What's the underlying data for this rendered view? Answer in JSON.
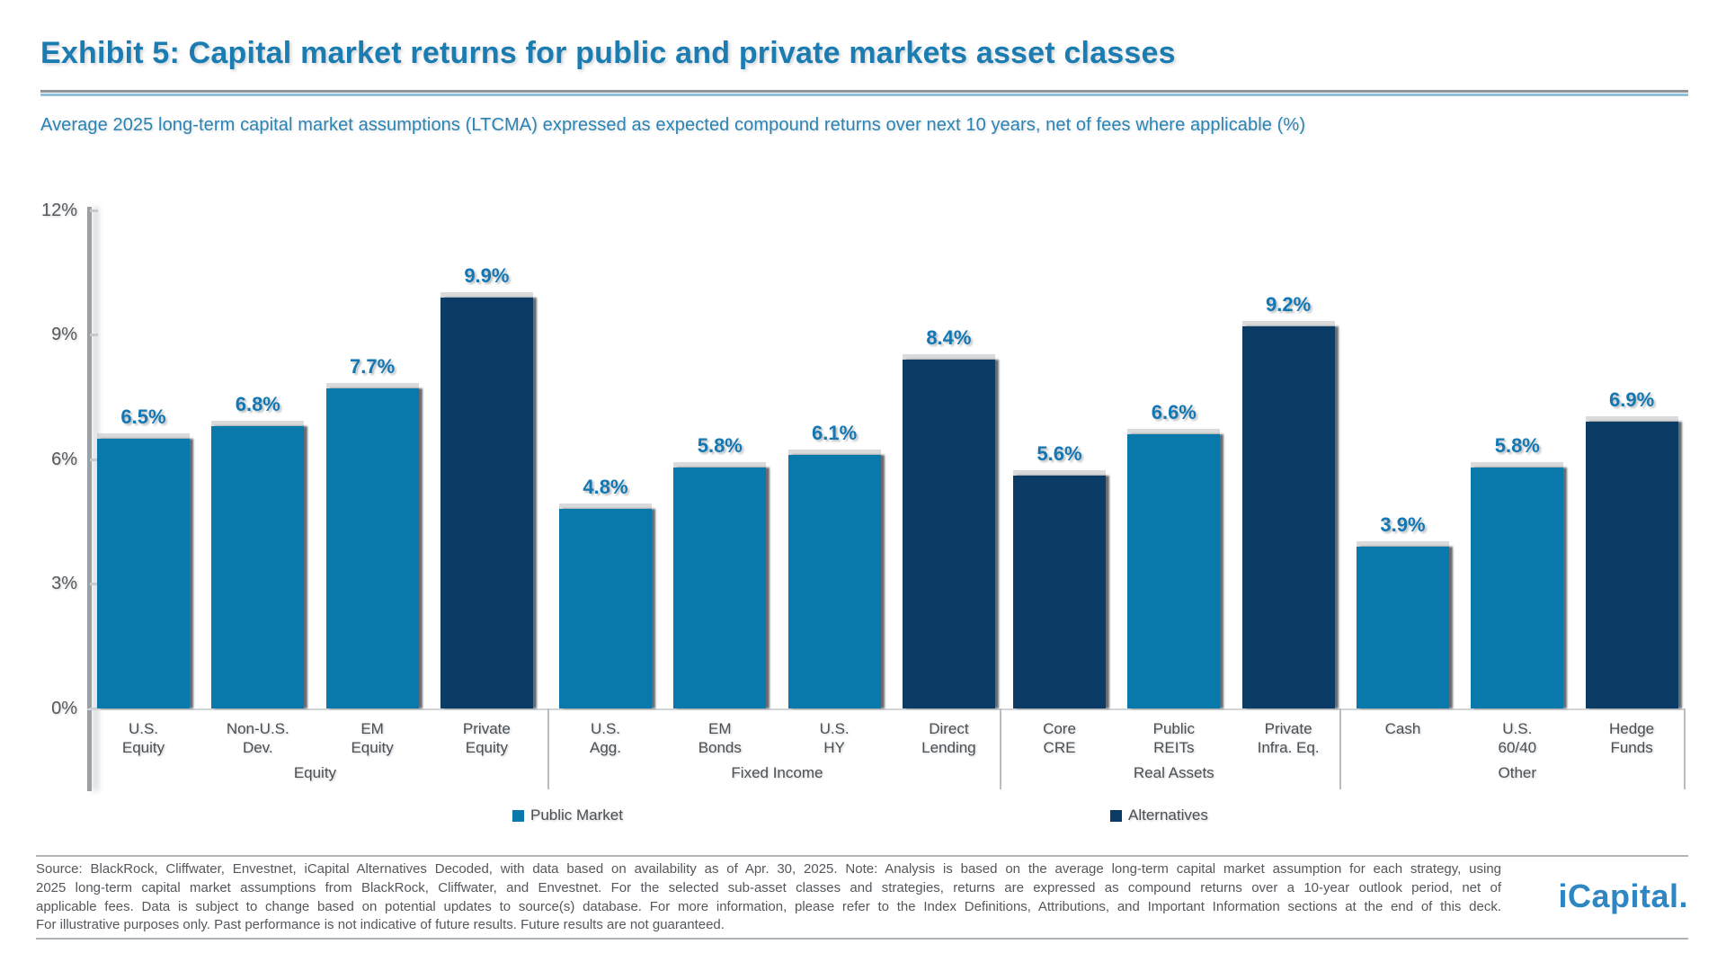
{
  "header": {
    "title": "Exhibit 5: Capital market returns for public and private markets asset classes",
    "subtitle": "Average 2025 long-term capital market assumptions (LTCMA) expressed as expected compound returns over next 10 years, net of fees where applicable (%)"
  },
  "chart_data": {
    "type": "bar",
    "title": "Exhibit 5: Capital market returns for public and private markets asset classes",
    "subtitle": "Average 2025 long-term capital market assumptions (LTCMA) expressed as expected compound returns over next 10 years, net of fees where applicable (%)",
    "ylim": [
      0,
      12
    ],
    "yticks": [
      "0%",
      "3%",
      "6%",
      "9%",
      "12%"
    ],
    "ytick_values": [
      0,
      3,
      6,
      9,
      12
    ],
    "grid": false,
    "legend_position": "bottom",
    "series": [
      {
        "name": "Public Market",
        "color": "#0879aa"
      },
      {
        "name": "Alternatives",
        "color": "#0a3c66"
      }
    ],
    "groups": [
      {
        "label": "Equity",
        "bars": [
          {
            "category": "U.S. Equity",
            "label_lines": [
              "U.S.",
              "Equity"
            ],
            "value": 6.5,
            "series": "Public Market"
          },
          {
            "category": "Non-U.S. Dev.",
            "label_lines": [
              "Non-U.S.",
              "Dev."
            ],
            "value": 6.8,
            "series": "Public Market"
          },
          {
            "category": "EM Equity",
            "label_lines": [
              "EM",
              "Equity"
            ],
            "value": 7.7,
            "series": "Public Market"
          },
          {
            "category": "Private Equity",
            "label_lines": [
              "Private",
              "Equity"
            ],
            "value": 9.9,
            "series": "Alternatives"
          }
        ]
      },
      {
        "label": "Fixed Income",
        "bars": [
          {
            "category": "U.S. Agg.",
            "label_lines": [
              "U.S.",
              "Agg."
            ],
            "value": 4.8,
            "series": "Public Market"
          },
          {
            "category": "EM Bonds",
            "label_lines": [
              "EM",
              "Bonds"
            ],
            "value": 5.8,
            "series": "Public Market"
          },
          {
            "category": "U.S. HY",
            "label_lines": [
              "U.S.",
              "HY"
            ],
            "value": 6.1,
            "series": "Public Market"
          },
          {
            "category": "Direct Lending",
            "label_lines": [
              "Direct",
              "Lending"
            ],
            "value": 8.4,
            "series": "Alternatives"
          }
        ]
      },
      {
        "label": "Real Assets",
        "bars": [
          {
            "category": "Core CRE",
            "label_lines": [
              "Core",
              "CRE"
            ],
            "value": 5.6,
            "series": "Alternatives"
          },
          {
            "category": "Public REITs",
            "label_lines": [
              "Public",
              "REITs"
            ],
            "value": 6.6,
            "series": "Public Market"
          },
          {
            "category": "Private Infra. Eq.",
            "label_lines": [
              "Private",
              "Infra. Eq."
            ],
            "value": 9.2,
            "series": "Alternatives"
          }
        ]
      },
      {
        "label": "Other",
        "bars": [
          {
            "category": "Cash",
            "label_lines": [
              "Cash"
            ],
            "value": 3.9,
            "series": "Public Market"
          },
          {
            "category": "U.S. 60/40",
            "label_lines": [
              "U.S.",
              "60/40"
            ],
            "value": 5.8,
            "series": "Public Market"
          },
          {
            "category": "Hedge Funds",
            "label_lines": [
              "Hedge",
              "Funds"
            ],
            "value": 6.9,
            "series": "Alternatives"
          }
        ]
      }
    ]
  },
  "legend": {
    "items": [
      {
        "label": "Public Market",
        "color": "#0879aa"
      },
      {
        "label": "Alternatives",
        "color": "#0a3c66"
      }
    ]
  },
  "footer": {
    "lines": [
      "Source: BlackRock, Cliffwater, Envestnet, iCapital Alternatives Decoded, with data based on availability as of Apr. 30, 2025. Note: Analysis is based on the average long-term capital market assumption for each strategy, using",
      "2025 long-term capital market assumptions from BlackRock, Cliffwater, and Envestnet. For the selected sub-asset classes and strategies, returns are expressed as compound returns over a 10-year outlook period, net of",
      "applicable fees. Data is subject to change based on potential updates to source(s) database. For more information, please refer to the Index Definitions, Attributions, and Important Information sections at the end of this deck.",
      "For illustrative purposes only. Past performance is not indicative of future results. Future results are not guaranteed."
    ],
    "logo": "iCapital."
  },
  "colors": {
    "public_market": "#0879aa",
    "alternatives": "#0a3c66",
    "title_blue": "#1b7cb2",
    "subtitle_blue": "#2a84b4",
    "value_label_blue": "#1277b2",
    "axis_gray": "#9aa0a4",
    "text_gray": "#4b5055",
    "logo_blue": "#2e86c3"
  }
}
